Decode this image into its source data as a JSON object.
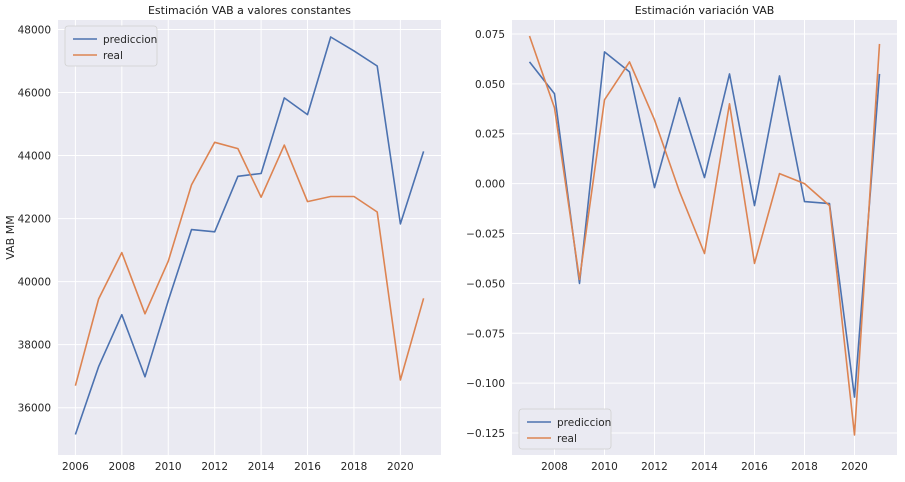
{
  "chart_data": [
    {
      "type": "line",
      "title": "Estimación VAB a valores constantes",
      "xlabel": "",
      "ylabel": "VAB MM",
      "x": [
        2006,
        2007,
        2008,
        2009,
        2010,
        2011,
        2012,
        2013,
        2014,
        2015,
        2016,
        2017,
        2018,
        2019,
        2020,
        2021
      ],
      "xlim": [
        2005.25,
        2021.75
      ],
      "ylim": [
        34500,
        48300
      ],
      "xticks": [
        2006,
        2008,
        2010,
        2012,
        2014,
        2016,
        2018,
        2020
      ],
      "yticks": [
        36000,
        38000,
        40000,
        42000,
        44000,
        46000,
        48000
      ],
      "grid": true,
      "legend_position": "upper-left",
      "series": [
        {
          "name": "prediccion",
          "color": "#4c72b0",
          "values": [
            35150,
            37300,
            38950,
            36980,
            39400,
            41650,
            41580,
            43340,
            43430,
            45830,
            45300,
            47760,
            47320,
            46840,
            41830,
            44130
          ]
        },
        {
          "name": "real",
          "color": "#dd8452",
          "values": [
            36700,
            39450,
            40920,
            38980,
            40650,
            43070,
            44420,
            44220,
            42680,
            44330,
            42540,
            42700,
            42700,
            42210,
            36880,
            39470
          ]
        }
      ]
    },
    {
      "type": "line",
      "title": "Estimación variación VAB",
      "xlabel": "",
      "ylabel": "",
      "x": [
        2007,
        2008,
        2009,
        2010,
        2011,
        2012,
        2013,
        2014,
        2015,
        2016,
        2017,
        2018,
        2019,
        2020,
        2021
      ],
      "xlim": [
        2006.3,
        2021.7
      ],
      "ylim": [
        -0.136,
        0.082
      ],
      "xticks": [
        2008,
        2010,
        2012,
        2014,
        2016,
        2018,
        2020
      ],
      "yticks": [
        -0.125,
        -0.1,
        -0.075,
        -0.05,
        -0.025,
        0.0,
        0.025,
        0.05,
        0.075
      ],
      "ytick_labels": [
        "−0.125",
        "−0.100",
        "−0.075",
        "−0.050",
        "−0.025",
        "0.000",
        "0.025",
        "0.050",
        "0.075"
      ],
      "grid": true,
      "legend_position": "lower-left",
      "series": [
        {
          "name": "prediccion",
          "color": "#4c72b0",
          "values": [
            0.061,
            0.045,
            -0.05,
            0.066,
            0.056,
            -0.002,
            0.043,
            0.003,
            0.055,
            -0.011,
            0.054,
            -0.009,
            -0.01,
            -0.107,
            0.055
          ]
        },
        {
          "name": "real",
          "color": "#dd8452",
          "values": [
            0.074,
            0.038,
            -0.048,
            0.042,
            0.061,
            0.032,
            -0.004,
            -0.035,
            0.04,
            -0.04,
            0.005,
            0.0,
            -0.011,
            -0.126,
            0.07
          ]
        }
      ]
    }
  ]
}
